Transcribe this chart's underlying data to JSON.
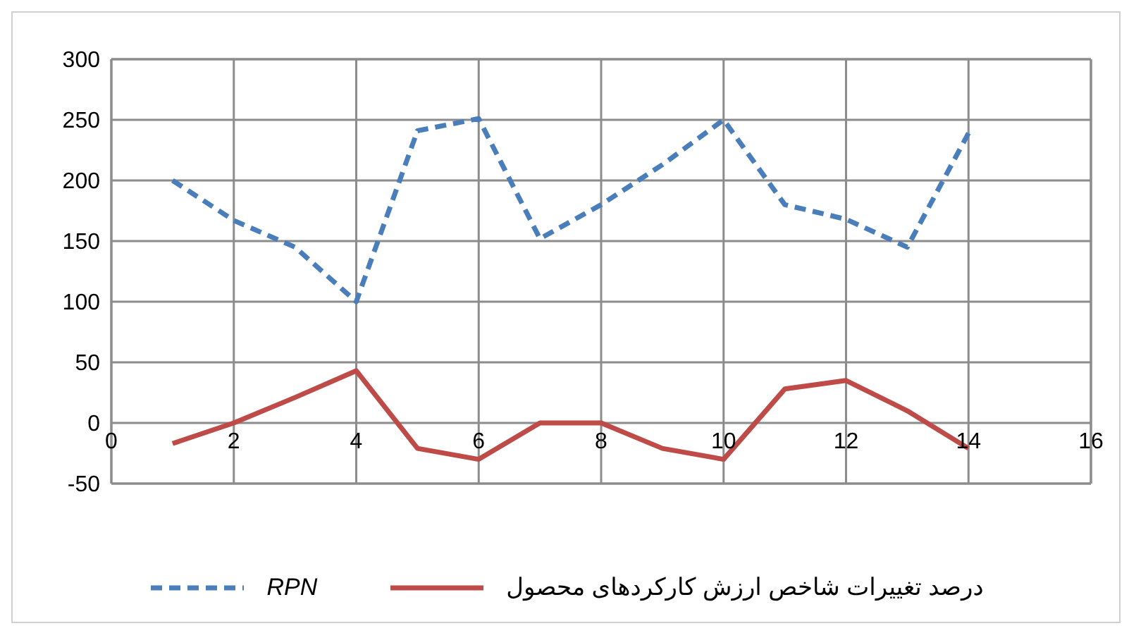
{
  "chart_data": {
    "type": "line",
    "x": [
      1,
      2,
      3,
      4,
      5,
      6,
      7,
      8,
      9,
      10,
      11,
      12,
      13,
      14
    ],
    "series": [
      {
        "name": "RPN",
        "color": "#4a7ebb",
        "line_style": "dashed",
        "values": [
          200,
          167,
          145,
          100,
          241,
          251,
          152,
          180,
          213,
          250,
          180,
          168,
          145,
          239
        ]
      },
      {
        "name": "درصد تغییرات شاخص ارزش کارکردهای محصول",
        "color": "#be4b48",
        "line_style": "solid",
        "values": [
          -17,
          0,
          21,
          43,
          -21,
          -30,
          0,
          0,
          -21,
          -30,
          28,
          35,
          10,
          -21
        ]
      }
    ],
    "xlim": [
      0,
      16
    ],
    "xticks": [
      0,
      2,
      4,
      6,
      8,
      10,
      12,
      14,
      16
    ],
    "ylim": [
      -50,
      300
    ],
    "yticks": [
      -50,
      0,
      50,
      100,
      150,
      200,
      250,
      300
    ],
    "grid": true,
    "legend": "bottom",
    "marker": "none"
  }
}
